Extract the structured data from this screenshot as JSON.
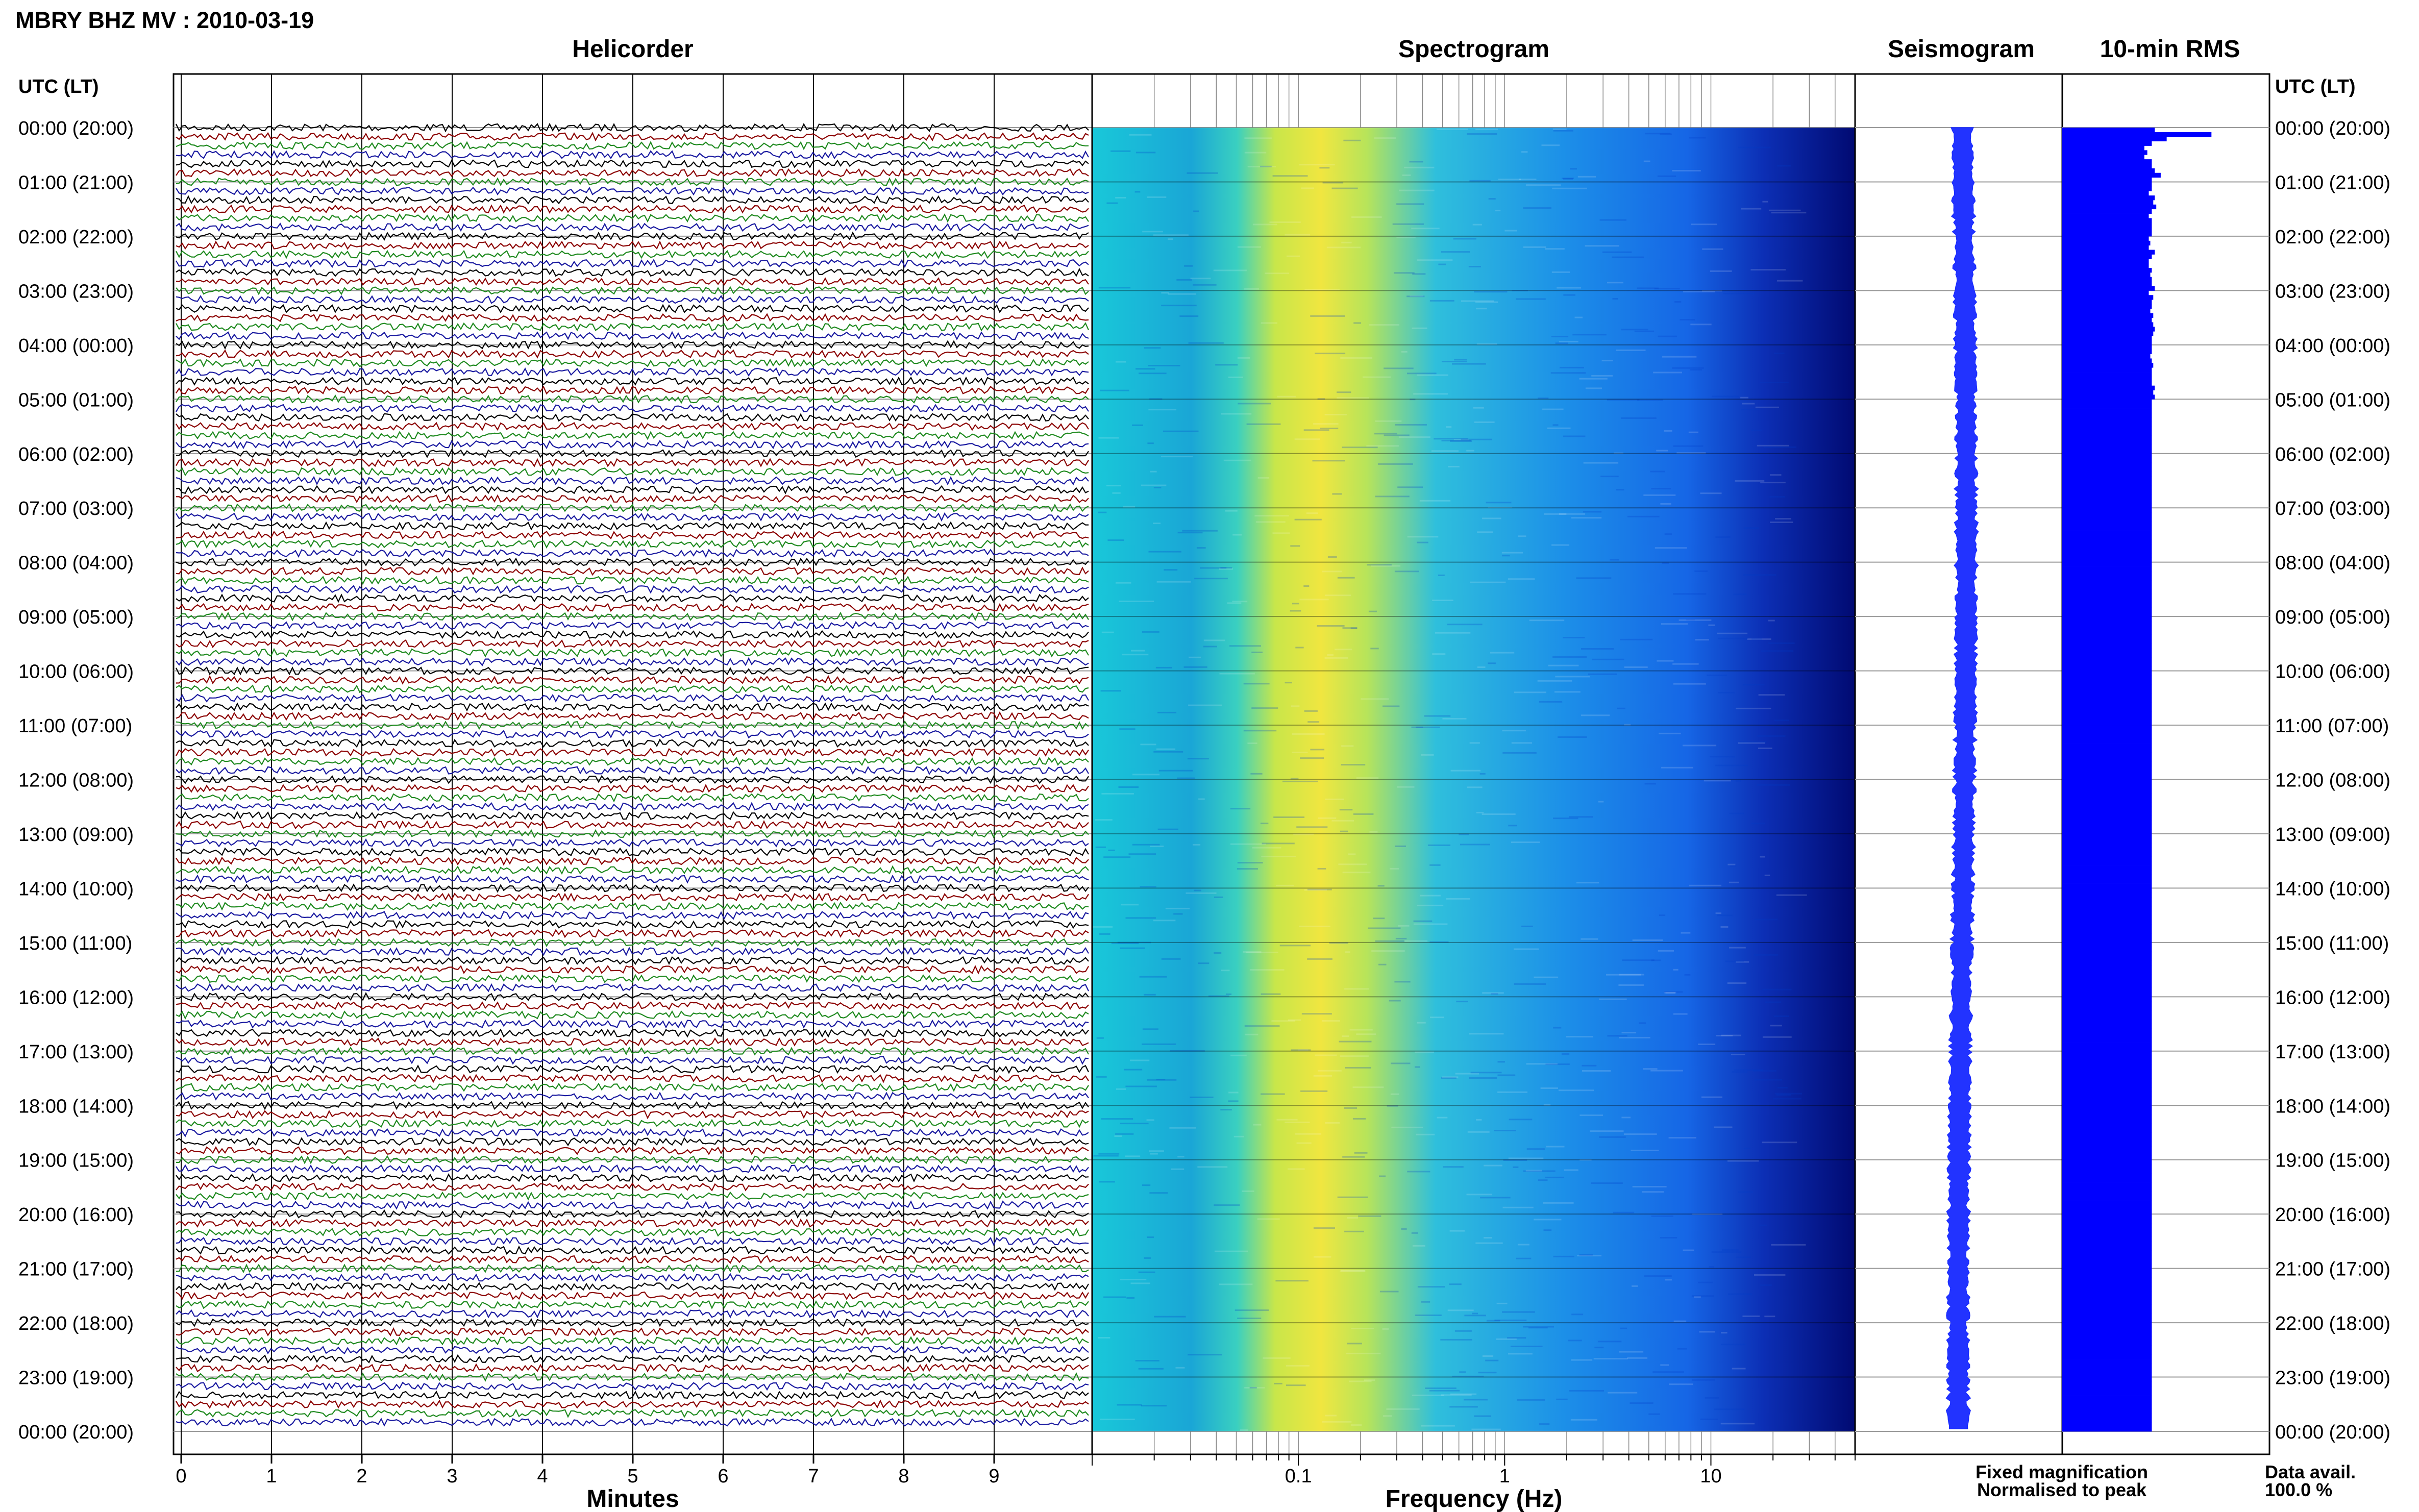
{
  "header": {
    "title": "MBRY BHZ MV : 2010-03-19"
  },
  "panels": {
    "helicorder": "Helicorder",
    "spectrogram": "Spectrogram",
    "seismogram": "Seismogram",
    "rms": "10-min RMS"
  },
  "axes": {
    "time_label": "UTC (LT)",
    "minutes_label": "Minutes",
    "frequency_label": "Frequency (Hz)",
    "minute_ticks": [
      "0",
      "1",
      "2",
      "3",
      "4",
      "5",
      "6",
      "7",
      "8",
      "9"
    ],
    "frequency_ticks": [
      "0.1",
      "1",
      "10"
    ],
    "hour_labels": [
      "00:00 (20:00)",
      "01:00 (21:00)",
      "02:00 (22:00)",
      "03:00 (23:00)",
      "04:00 (00:00)",
      "05:00 (01:00)",
      "06:00 (02:00)",
      "07:00 (03:00)",
      "08:00 (04:00)",
      "09:00 (05:00)",
      "10:00 (06:00)",
      "11:00 (07:00)",
      "12:00 (08:00)",
      "13:00 (09:00)",
      "14:00 (10:00)",
      "15:00 (11:00)",
      "16:00 (12:00)",
      "17:00 (13:00)",
      "18:00 (14:00)",
      "19:00 (15:00)",
      "20:00 (16:00)",
      "21:00 (17:00)",
      "22:00 (18:00)",
      "23:00 (19:00)",
      "00:00 (20:00)"
    ]
  },
  "legend": {
    "fixed": "Fixed magnification",
    "normalised": "Normalised to peak",
    "fixed_color": "#0000ff",
    "normalised_color": "#ff0000"
  },
  "data_availability": {
    "label": "Data avail.",
    "value": "100.0 %"
  },
  "colors": {
    "trace_cycle": [
      "#000000",
      "#8b0000",
      "#1f8a1f",
      "#1a1aa0"
    ],
    "bar": "#0000ff",
    "spectrogram_scale": [
      "#00007f",
      "#0000ff",
      "#007fff",
      "#00ffff",
      "#7fff7f",
      "#ffff00"
    ]
  },
  "chart_data": {
    "type": "heatmap",
    "rms": {
      "units": "relative",
      "values": [
        0.62,
        1.0,
        0.7,
        0.6,
        0.55,
        0.57,
        0.55,
        0.6,
        0.6,
        0.62,
        0.66,
        0.6,
        0.6,
        0.6,
        0.58,
        0.62,
        0.61,
        0.63,
        0.6,
        0.58,
        0.6,
        0.6,
        0.6,
        0.6,
        0.58,
        0.59,
        0.58,
        0.62,
        0.6,
        0.58,
        0.58,
        0.6,
        0.59,
        0.6,
        0.6,
        0.62,
        0.58,
        0.61,
        0.6,
        0.6,
        0.59,
        0.61,
        0.6,
        0.61,
        0.62,
        0.61,
        0.6,
        0.6,
        0.6,
        0.6,
        0.59,
        0.6,
        0.61,
        0.6,
        0.6,
        0.6,
        0.6,
        0.62,
        0.61,
        0.62,
        0.6,
        0.6,
        0.6,
        0.6,
        0.6,
        0.6,
        0.6,
        0.6,
        0.6,
        0.6,
        0.6,
        0.6,
        0.6,
        0.6,
        0.6,
        0.6,
        0.6,
        0.6,
        0.6,
        0.6,
        0.6,
        0.6,
        0.6,
        0.6,
        0.6,
        0.6,
        0.6,
        0.6,
        0.6,
        0.6,
        0.6,
        0.6,
        0.6,
        0.6,
        0.6,
        0.6,
        0.6,
        0.6,
        0.6,
        0.6,
        0.6,
        0.6,
        0.6,
        0.6,
        0.6,
        0.6,
        0.6,
        0.6,
        0.6,
        0.6,
        0.6,
        0.6,
        0.6,
        0.6,
        0.6,
        0.6,
        0.6,
        0.6,
        0.6,
        0.6,
        0.6,
        0.6,
        0.6,
        0.6,
        0.6,
        0.6,
        0.6,
        0.6,
        0.6,
        0.6,
        0.6,
        0.6,
        0.6,
        0.6,
        0.6,
        0.6,
        0.6,
        0.6,
        0.6,
        0.6,
        0.6,
        0.6,
        0.6,
        0.6,
        0.6,
        0.6,
        0.6,
        0.6,
        0.6,
        0.6,
        0.6,
        0.6,
        0.6,
        0.6,
        0.6,
        0.6,
        0.6,
        0.6,
        0.6,
        0.6,
        0.6,
        0.6,
        0.6,
        0.6,
        0.6,
        0.6,
        0.6,
        0.6,
        0.6,
        0.6,
        0.6,
        0.6,
        0.6,
        0.6,
        0.6,
        0.6,
        0.6,
        0.6,
        0.6,
        0.6,
        0.6,
        0.6,
        0.6,
        0.6,
        0.6,
        0.6,
        0.6,
        0.6,
        0.6,
        0.6,
        0.6,
        0.6,
        0.6,
        0.6,
        0.6,
        0.6,
        0.6,
        0.6,
        0.6,
        0.6,
        0.6,
        0.6,
        0.6,
        0.6,
        0.6,
        0.6,
        0.6,
        0.6,
        0.6,
        0.6,
        0.6,
        0.6,
        0.6,
        0.6,
        0.6,
        0.6,
        0.6,
        0.6,
        0.6,
        0.6,
        0.6,
        0.6,
        0.6,
        0.6,
        0.6,
        0.6,
        0.6,
        0.6,
        0.6,
        0.6,
        0.6,
        0.6,
        0.6,
        0.6,
        0.6,
        0.6,
        0.6,
        0.6,
        0.6,
        0.6,
        0.6,
        0.6,
        0.6,
        0.6,
        0.6,
        0.6,
        0.6,
        0.6,
        0.6,
        0.6,
        0.6,
        0.6,
        0.6,
        0.6,
        0.6,
        0.6,
        0.6,
        0.6,
        0.6,
        0.6,
        0.6,
        0.6,
        0.6,
        0.6,
        0.6,
        0.6,
        0.6,
        0.6,
        0.6,
        0.6,
        0.6,
        0.6,
        0.6,
        0.6,
        0.6,
        0.6,
        0.6,
        0.6,
        0.6,
        0.6,
        0.6,
        0.6,
        0.6,
        0.6,
        0.6,
        0.6,
        0.6,
        0.6
      ]
    },
    "helicorder": {
      "line_minutes": 10,
      "total_hours": 24
    },
    "spectrogram": {
      "freq_range": [
        0.01,
        50
      ],
      "scale": "log"
    }
  }
}
